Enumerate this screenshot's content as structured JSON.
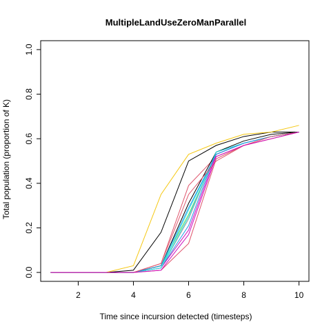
{
  "chart_data": {
    "type": "line",
    "title": "MultipleLandUseZeroManParallel",
    "xlabel": "Time since incursion detected (timesteps)",
    "ylabel": "Total population (proportion of K)",
    "xlim": [
      1,
      10
    ],
    "ylim": [
      0,
      1
    ],
    "x_ticks": [
      "2",
      "4",
      "6",
      "8",
      "10"
    ],
    "y_ticks": [
      "0.0",
      "0.2",
      "0.4",
      "0.6",
      "0.8",
      "1.0"
    ],
    "grid": false,
    "x": [
      1,
      2,
      3,
      4,
      5,
      6,
      7,
      8,
      9,
      10
    ],
    "series": [
      {
        "color": "#000000",
        "values": [
          0,
          0,
          0,
          0.01,
          0.18,
          0.5,
          0.57,
          0.61,
          0.63,
          0.63
        ]
      },
      {
        "color": "#DF536B",
        "values": [
          0,
          0,
          0,
          0,
          0.04,
          0.39,
          0.52,
          0.57,
          0.6,
          0.63
        ]
      },
      {
        "color": "#61D04F",
        "values": [
          0,
          0,
          0,
          0,
          0.03,
          0.26,
          0.53,
          0.58,
          0.61,
          0.63
        ]
      },
      {
        "color": "#2297E6",
        "values": [
          0,
          0,
          0,
          0,
          0.02,
          0.21,
          0.54,
          0.58,
          0.61,
          0.63
        ]
      },
      {
        "color": "#28E2E5",
        "values": [
          0,
          0,
          0,
          0,
          0.02,
          0.28,
          0.53,
          0.58,
          0.61,
          0.63
        ]
      },
      {
        "color": "#CD0BBC",
        "values": [
          0,
          0,
          0,
          0,
          0.02,
          0.19,
          0.53,
          0.58,
          0.61,
          0.63
        ]
      },
      {
        "color": "#F5C710",
        "values": [
          0,
          0,
          0,
          0.03,
          0.35,
          0.53,
          0.58,
          0.62,
          0.63,
          0.66
        ]
      },
      {
        "color": "#9E9E9E",
        "values": [
          0,
          0,
          0,
          0,
          0.02,
          0.24,
          0.54,
          0.58,
          0.61,
          0.63
        ]
      },
      {
        "color": "#000000",
        "values": [
          0,
          0,
          0,
          0,
          0.03,
          0.31,
          0.54,
          0.59,
          0.62,
          0.63
        ]
      },
      {
        "color": "#DF536B",
        "values": [
          0,
          0,
          0,
          0,
          0.01,
          0.13,
          0.51,
          0.57,
          0.6,
          0.63
        ]
      },
      {
        "color": "#28E2E5",
        "values": [
          0,
          0,
          0,
          0,
          0.02,
          0.25,
          0.54,
          0.58,
          0.61,
          0.63
        ]
      },
      {
        "color": "#2297E6",
        "values": [
          0,
          0,
          0,
          0,
          0.03,
          0.29,
          0.53,
          0.58,
          0.61,
          0.63
        ]
      },
      {
        "color": "#DF536B",
        "values": [
          0,
          0,
          0,
          0,
          0.04,
          0.35,
          0.5,
          0.57,
          0.61,
          0.63
        ]
      },
      {
        "color": "#CD0BBC",
        "values": [
          0,
          0,
          0,
          0,
          0.01,
          0.17,
          0.52,
          0.57,
          0.6,
          0.63
        ]
      }
    ]
  }
}
